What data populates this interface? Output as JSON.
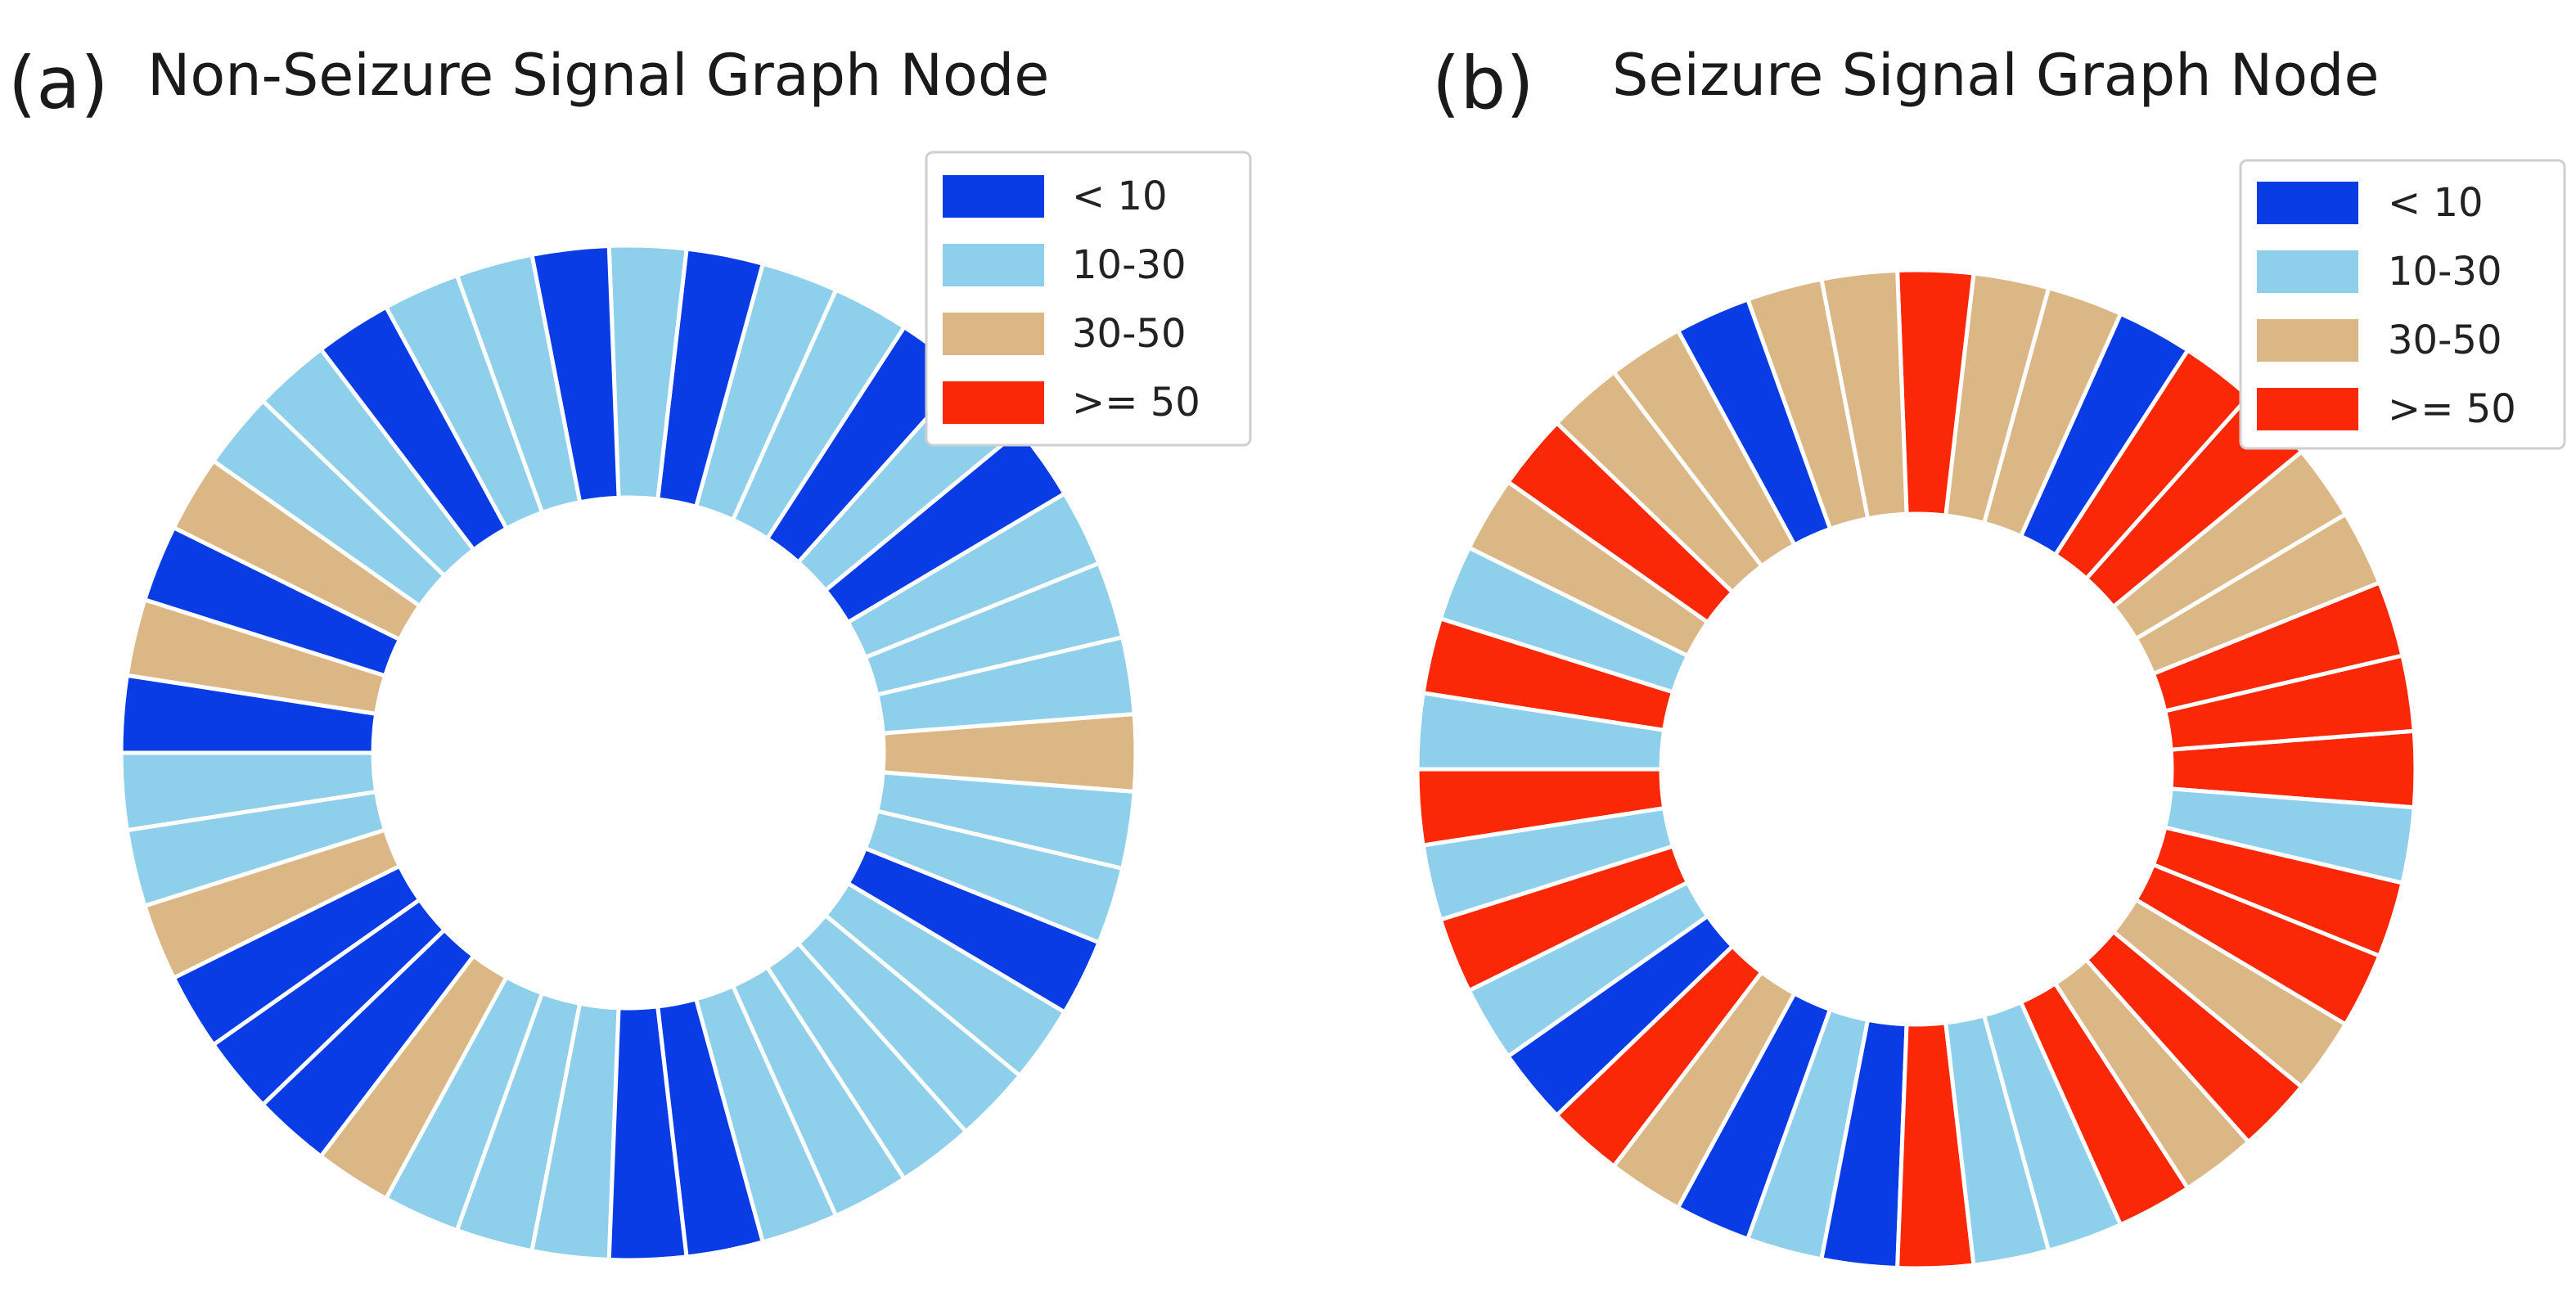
{
  "colors": {
    "lt10": "#0a3ce6",
    "10-30": "#8ecfeb",
    "30-50": "#dcb786",
    "ge50": "#fa2807"
  },
  "chart_data": [
    {
      "type": "pie",
      "panel_letter": "(a)",
      "title": "Non-Seizure Signal Graph Node",
      "legend": [
        {
          "key": "lt10",
          "label": "< 10"
        },
        {
          "key": "10-30",
          "label": "10-30"
        },
        {
          "key": "30-50",
          "label": "30-50"
        },
        {
          "key": "ge50",
          "label": ">= 50"
        }
      ],
      "legend_position": "top-right",
      "start_direction": "east",
      "order": "counter-clockwise",
      "segments": [
        "30-50",
        "10-30",
        "10-30",
        "10-30",
        "lt10",
        "10-30",
        "lt10",
        "10-30",
        "10-30",
        "lt10",
        "10-30",
        "lt10",
        "10-30",
        "10-30",
        "lt10",
        "10-30",
        "10-30",
        "30-50",
        "lt10",
        "30-50",
        "lt10",
        "10-30",
        "10-30",
        "30-50",
        "lt10",
        "lt10",
        "lt10",
        "30-50",
        "10-30",
        "10-30",
        "10-30",
        "lt10",
        "lt10",
        "10-30",
        "10-30",
        "10-30",
        "10-30",
        "10-30",
        "lt10",
        "10-30",
        "10-30"
      ]
    },
    {
      "type": "pie",
      "panel_letter": "(b)",
      "title": "Seizure Signal Graph Node",
      "legend": [
        {
          "key": "lt10",
          "label": "< 10"
        },
        {
          "key": "10-30",
          "label": "10-30"
        },
        {
          "key": "30-50",
          "label": "30-50"
        },
        {
          "key": "ge50",
          "label": ">= 50"
        }
      ],
      "legend_position": "top-right",
      "start_direction": "east",
      "order": "counter-clockwise",
      "segments": [
        "ge50",
        "ge50",
        "ge50",
        "30-50",
        "30-50",
        "ge50",
        "ge50",
        "lt10",
        "30-50",
        "30-50",
        "ge50",
        "30-50",
        "30-50",
        "lt10",
        "30-50",
        "30-50",
        "ge50",
        "30-50",
        "10-30",
        "ge50",
        "10-30",
        "ge50",
        "10-30",
        "ge50",
        "10-30",
        "lt10",
        "ge50",
        "30-50",
        "lt10",
        "10-30",
        "lt10",
        "ge50",
        "10-30",
        "10-30",
        "ge50",
        "30-50",
        "ge50",
        "30-50",
        "ge50",
        "ge50",
        "10-30"
      ]
    }
  ]
}
